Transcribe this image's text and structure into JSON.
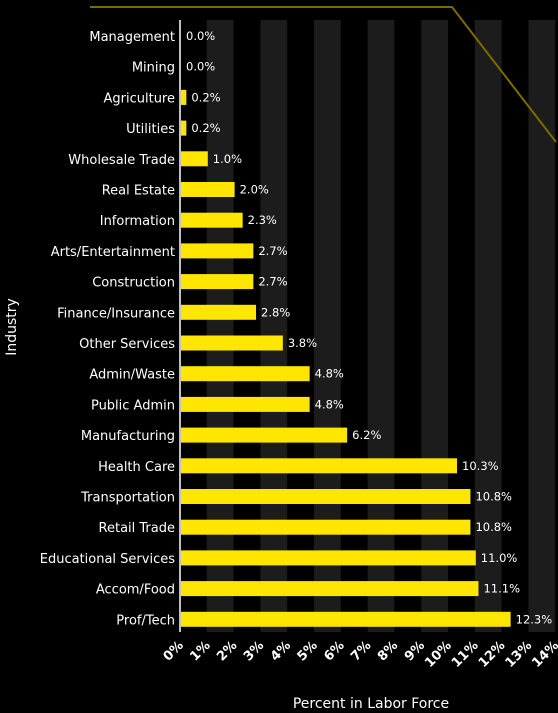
{
  "chart_data": {
    "type": "bar",
    "orientation": "horizontal",
    "title": "",
    "xlabel": "Percent in Labor Force",
    "ylabel": "Industry",
    "xlim": [
      0,
      14
    ],
    "x_ticks": [
      "0%",
      "1%",
      "2%",
      "3%",
      "4%",
      "5%",
      "6%",
      "7%",
      "8%",
      "9%",
      "10%",
      "11%",
      "12%",
      "13%",
      "14%"
    ],
    "categories": [
      "Management",
      "Mining",
      "Agriculture",
      "Utilities",
      "Wholesale Trade",
      "Real Estate",
      "Information",
      "Arts/Entertainment",
      "Construction",
      "Finance/Insurance",
      "Other Services",
      "Admin/Waste",
      "Public Admin",
      "Manufacturing",
      "Health Care",
      "Transportation",
      "Retail Trade",
      "Educational Services",
      "Accom/Food",
      "Prof/Tech"
    ],
    "values": [
      0.0,
      0.0,
      0.2,
      0.2,
      1.0,
      2.0,
      2.3,
      2.7,
      2.7,
      2.8,
      3.8,
      4.8,
      4.8,
      6.2,
      10.3,
      10.8,
      10.8,
      11.0,
      11.1,
      12.3
    ],
    "data_labels": [
      "0.0%",
      "0.0%",
      "0.2%",
      "0.2%",
      "1.0%",
      "2.0%",
      "2.3%",
      "2.7%",
      "2.7%",
      "2.8%",
      "3.8%",
      "4.8%",
      "4.8%",
      "6.2%",
      "10.3%",
      "10.8%",
      "10.8%",
      "11.0%",
      "11.1%",
      "12.3%"
    ],
    "grid": "alternating vertical bands",
    "legend": "none",
    "colors": {
      "background": "#000000",
      "bar": "#ffe600",
      "band": "#1c1c1c",
      "deco_line": "#7a6a00",
      "text": "#ffffff"
    }
  }
}
